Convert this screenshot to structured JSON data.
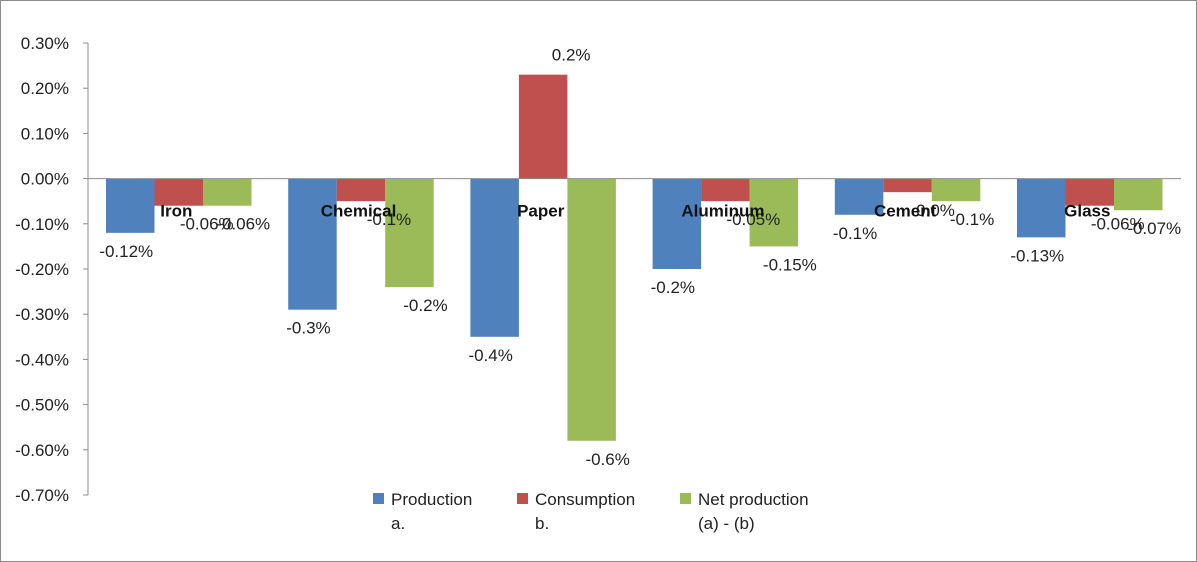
{
  "chart_data": {
    "type": "bar",
    "categories": [
      "Iron",
      "Chemical",
      "Paper",
      "Aluminum",
      "Cement",
      "Glass"
    ],
    "series": [
      {
        "name": "Production",
        "subname": "a.",
        "color": "#4F81BD",
        "values": [
          -0.12,
          -0.29,
          -0.35,
          -0.2,
          -0.08,
          -0.13
        ],
        "labels": [
          "-0.12%",
          "-0.3%",
          "-0.4%",
          "-0.2%",
          "-0.1%",
          "-0.13%"
        ]
      },
      {
        "name": "Consumption",
        "subname": "b.",
        "color": "#C0504D",
        "values": [
          -0.06,
          -0.05,
          0.23,
          -0.05,
          -0.03,
          -0.06
        ],
        "labels": [
          "-0.06%",
          "-0.1%",
          "0.2%",
          "-0.05%",
          "0.0%",
          "-0.06%"
        ]
      },
      {
        "name": "Net production",
        "subname": "(a) - (b)",
        "color": "#9BBB59",
        "values": [
          -0.06,
          -0.24,
          -0.58,
          -0.15,
          -0.05,
          -0.07
        ],
        "labels": [
          "-0.06%",
          "-0.2%",
          "-0.6%",
          "-0.15%",
          "-0.1%",
          "-0.07%"
        ]
      }
    ],
    "yticks": [
      "0.30%",
      "0.20%",
      "0.10%",
      "0.00%",
      "-0.10%",
      "-0.20%",
      "-0.30%",
      "-0.40%",
      "-0.50%",
      "-0.60%",
      "-0.70%"
    ],
    "ylim": [
      -0.7,
      0.3
    ],
    "unit": "%",
    "grid": false,
    "legend": "bottom-center"
  }
}
